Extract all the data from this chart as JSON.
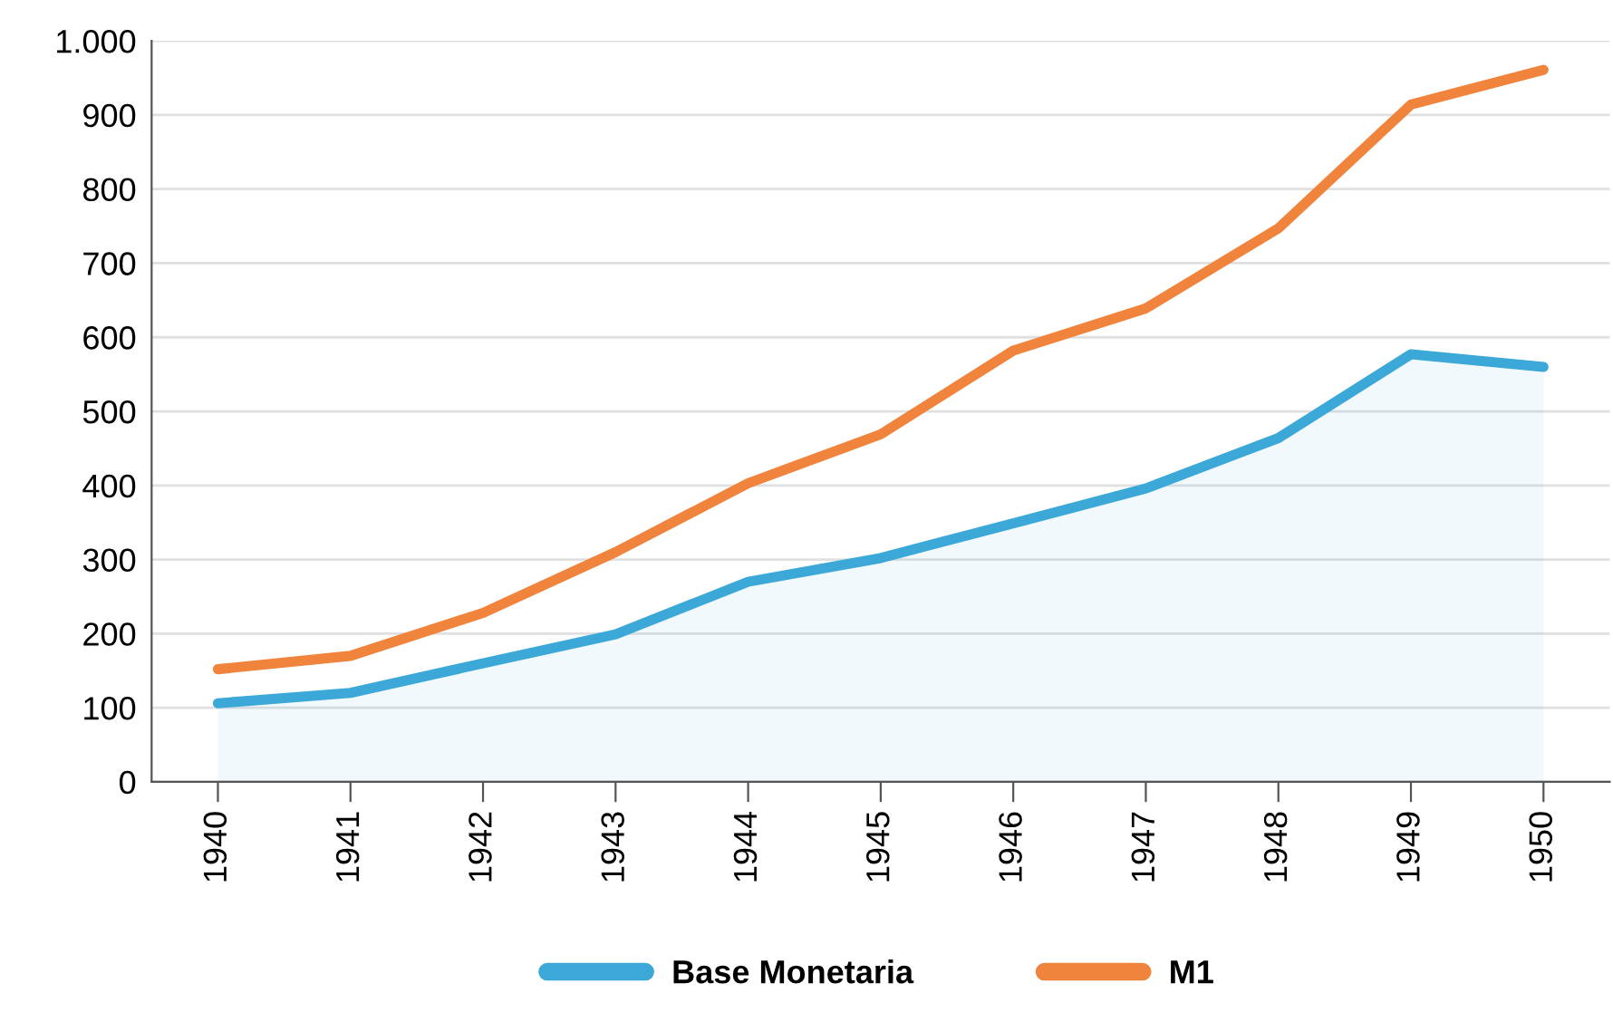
{
  "chart_data": {
    "type": "line",
    "categories": [
      "1940",
      "1941",
      "1942",
      "1943",
      "1944",
      "1945",
      "1946",
      "1947",
      "1948",
      "1949",
      "1950"
    ],
    "series": [
      {
        "name": "Base Monetaria",
        "color": "#3ba8d8",
        "type": "area",
        "values": [
          106,
          120,
          160,
          199,
          270,
          302,
          349,
          396,
          464,
          577,
          560
        ]
      },
      {
        "name": "M1",
        "color": "#f0843c",
        "values": [
          152,
          170,
          228,
          310,
          403,
          469,
          582,
          639,
          747,
          914,
          961
        ]
      }
    ],
    "ylim": [
      0,
      1000
    ],
    "yticks": [
      0,
      100,
      200,
      300,
      400,
      500,
      600,
      700,
      800,
      900,
      {
        "value": 1000,
        "label": "1.000"
      }
    ],
    "grid": "y",
    "legend": "bottom"
  }
}
